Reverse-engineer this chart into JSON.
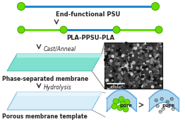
{
  "bg_color": "#ffffff",
  "green_dot_color": "#66dd00",
  "green_dot_edge": "#44aa00",
  "blue_line_color": "#2288cc",
  "green_line_color": "#66dd00",
  "membrane_face_color": "#80e0d0",
  "membrane_edge_color": "#50c0b0",
  "membrane_top_color": "#c0f5ee",
  "porous_face_color": "#d8eef8",
  "porous_edge_color": "#88bbdd",
  "porous_top_color": "#eef8ff",
  "arrow_color": "#444444",
  "text_color": "#222222",
  "channel_color": "#66aadd",
  "channel_fill": "#aad4ee",
  "label_psu": "End-functional PSU",
  "label_pla": "PLA-PPSU-PLA",
  "label_cast": "Cast/Anneal",
  "label_phase": "Phase-separated membrane",
  "label_hydrolysis": "Hydrolysis",
  "label_porous": "Porous membrane template",
  "label_pore": "pore",
  "sem_dark": "#2a2a2a",
  "sem_mid": "#555555",
  "sem_light": "#999999"
}
